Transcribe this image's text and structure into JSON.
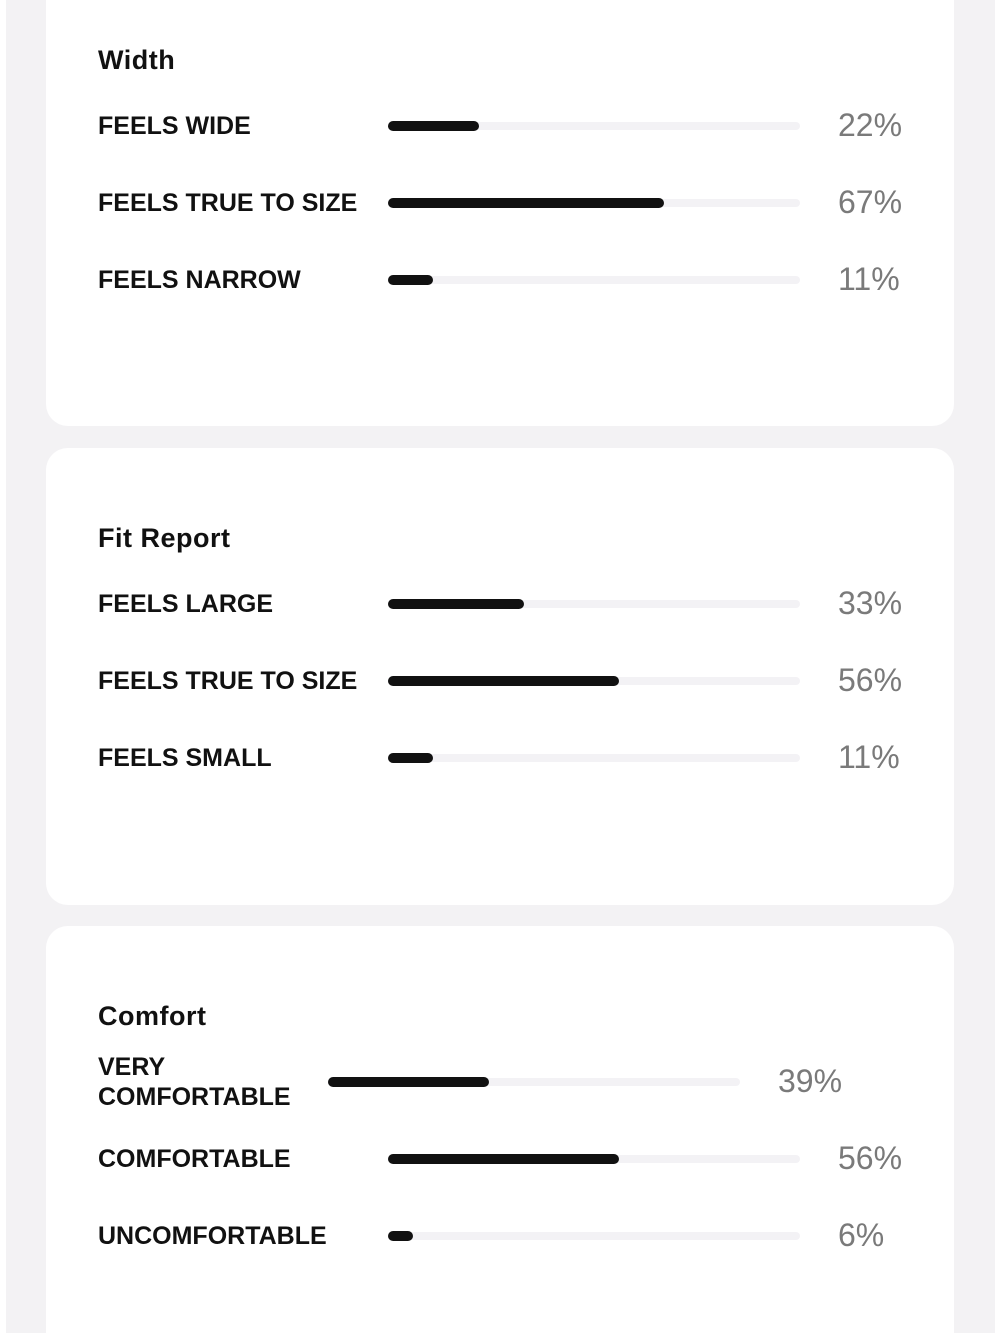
{
  "xlim": [
    0,
    100
  ],
  "sections": [
    {
      "title": "Width",
      "rows": [
        {
          "label": "FEELS WIDE",
          "value": 22,
          "value_label": "22%"
        },
        {
          "label": "FEELS TRUE TO SIZE",
          "value": 67,
          "value_label": "67%"
        },
        {
          "label": "FEELS NARROW",
          "value": 11,
          "value_label": "11%"
        }
      ]
    },
    {
      "title": "Fit Report",
      "rows": [
        {
          "label": "FEELS LARGE",
          "value": 33,
          "value_label": "33%"
        },
        {
          "label": "FEELS TRUE TO SIZE",
          "value": 56,
          "value_label": "56%"
        },
        {
          "label": "FEELS SMALL",
          "value": 11,
          "value_label": "11%"
        }
      ]
    },
    {
      "title": "Comfort",
      "rows": [
        {
          "label": "VERY COMFORTABLE",
          "value": 39,
          "value_label": "39%"
        },
        {
          "label": "COMFORTABLE",
          "value": 56,
          "value_label": "56%"
        },
        {
          "label": "UNCOMFORTABLE",
          "value": 6,
          "value_label": "6%"
        }
      ]
    }
  ]
}
